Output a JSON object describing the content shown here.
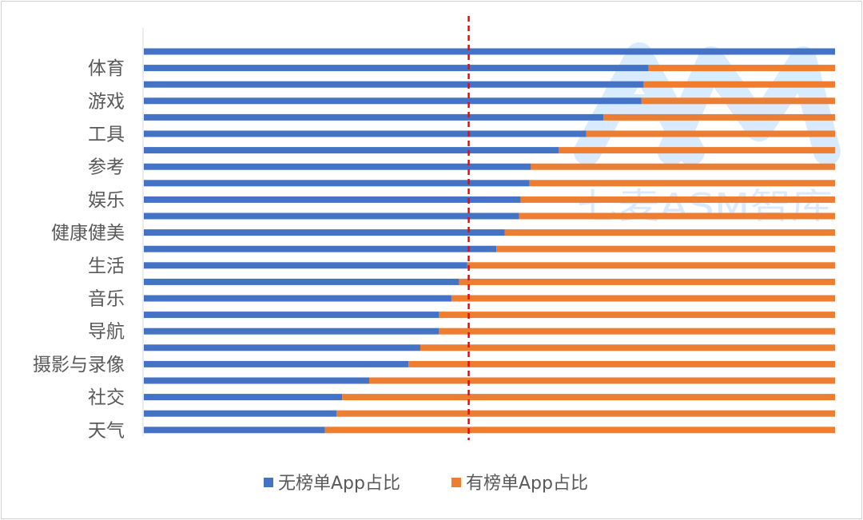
{
  "chart_data": {
    "type": "bar",
    "stacked": "percent",
    "orientation": "horizontal",
    "categories_top_to_bottom": [
      "",
      "体育",
      "",
      "游戏",
      "",
      "工具",
      "",
      "参考",
      "",
      "娱乐",
      "",
      "健康健美",
      "",
      "生活",
      "",
      "音乐",
      "",
      "导航",
      "",
      "摄影与录像",
      "",
      "社交",
      "",
      "天气"
    ],
    "series": [
      {
        "name": "无榜单App占比",
        "color": "#4472C4",
        "values": [
          100,
          73,
          72.3,
          72,
          66.5,
          64,
          60,
          56,
          55.8,
          54.5,
          54.3,
          52.2,
          51,
          46.8,
          45.6,
          44.5,
          42.7,
          42.7,
          40,
          38.3,
          32.6,
          28.7,
          27.9,
          26.2
        ]
      },
      {
        "name": "有榜单App占比",
        "color": "#ED7D31",
        "values": [
          0,
          27,
          27.7,
          28,
          33.5,
          36,
          40,
          44,
          44.2,
          45.5,
          45.7,
          47.8,
          49,
          53.2,
          54.4,
          55.5,
          57.3,
          57.3,
          60,
          61.7,
          67.4,
          71.3,
          72.1,
          73.8
        ]
      }
    ],
    "xlim": [
      0,
      100
    ],
    "reference_line": {
      "x": 47,
      "style": "dashed",
      "color": "#FF0000"
    },
    "legend": "bottom",
    "grid": false,
    "watermark": "七麦ASM智库"
  }
}
